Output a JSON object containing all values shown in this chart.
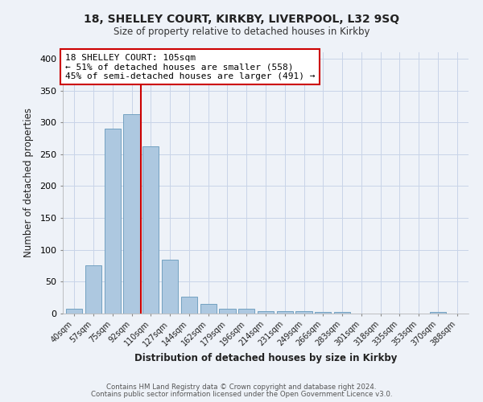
{
  "title": "18, SHELLEY COURT, KIRKBY, LIVERPOOL, L32 9SQ",
  "subtitle": "Size of property relative to detached houses in Kirkby",
  "xlabel": "Distribution of detached houses by size in Kirkby",
  "ylabel": "Number of detached properties",
  "bar_labels": [
    "40sqm",
    "57sqm",
    "75sqm",
    "92sqm",
    "110sqm",
    "127sqm",
    "144sqm",
    "162sqm",
    "179sqm",
    "196sqm",
    "214sqm",
    "231sqm",
    "249sqm",
    "266sqm",
    "283sqm",
    "301sqm",
    "318sqm",
    "335sqm",
    "353sqm",
    "370sqm",
    "388sqm"
  ],
  "bar_values": [
    8,
    76,
    290,
    313,
    263,
    84,
    26,
    15,
    8,
    8,
    4,
    4,
    4,
    2,
    2,
    0,
    0,
    0,
    0,
    3,
    0
  ],
  "bar_color": "#adc8e0",
  "bar_edge_color": "#6699bb",
  "vline_color": "#cc0000",
  "annotation_title": "18 SHELLEY COURT: 105sqm",
  "annotation_line1": "← 51% of detached houses are smaller (558)",
  "annotation_line2": "45% of semi-detached houses are larger (491) →",
  "annotation_box_color": "white",
  "annotation_box_edge_color": "#cc0000",
  "ylim": [
    0,
    410
  ],
  "yticks": [
    0,
    50,
    100,
    150,
    200,
    250,
    300,
    350,
    400
  ],
  "grid_color": "#c8d4e8",
  "background_color": "#eef2f8",
  "footer_line1": "Contains HM Land Registry data © Crown copyright and database right 2024.",
  "footer_line2": "Contains public sector information licensed under the Open Government Licence v3.0."
}
